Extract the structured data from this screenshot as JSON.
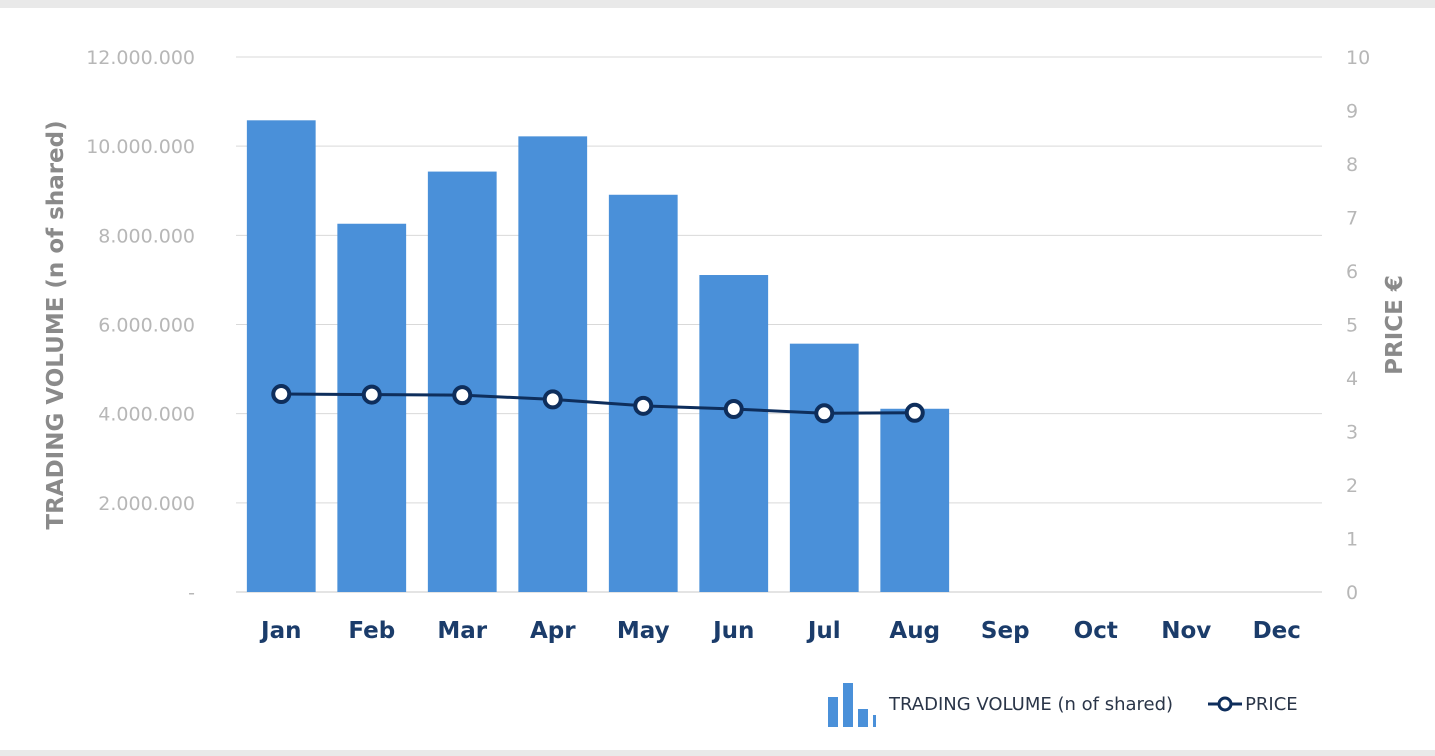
{
  "chart_data": {
    "type": "bar+line",
    "categories": [
      "Jan",
      "Feb",
      "Mar",
      "Apr",
      "May",
      "Jun",
      "Jul",
      "Aug",
      "Sep",
      "Oct",
      "Nov",
      "Dec"
    ],
    "series": [
      {
        "name": "TRADING  VOLUME (n of shared)",
        "type": "bar",
        "axis": "left",
        "color": "#4a90d9",
        "values": [
          10580000,
          8260000,
          9430000,
          10220000,
          8910000,
          7110000,
          5570000,
          4110000,
          null,
          null,
          null,
          null
        ]
      },
      {
        "name": "PRICE",
        "type": "line",
        "axis": "right",
        "color": "#0e2e5c",
        "values": [
          3.7,
          3.69,
          3.68,
          3.6,
          3.48,
          3.42,
          3.34,
          3.35,
          null,
          null,
          null,
          null
        ]
      }
    ],
    "y_left": {
      "label": "TRADING  VOLUME (n of shared)",
      "ylim": [
        0,
        12000000
      ],
      "ticks": [
        "-",
        "2.000.000",
        "4.000.000",
        "6.000.000",
        "8.000.000",
        "10.000.000",
        "12.000.000"
      ]
    },
    "y_right": {
      "label": "PRICE €",
      "ylim": [
        0,
        10
      ],
      "ticks": [
        "0",
        "1",
        "2",
        "3",
        "4",
        "5",
        "6",
        "7",
        "8",
        "9",
        "10"
      ]
    },
    "grid": true,
    "legend": {
      "placement": "bottom-right"
    }
  }
}
